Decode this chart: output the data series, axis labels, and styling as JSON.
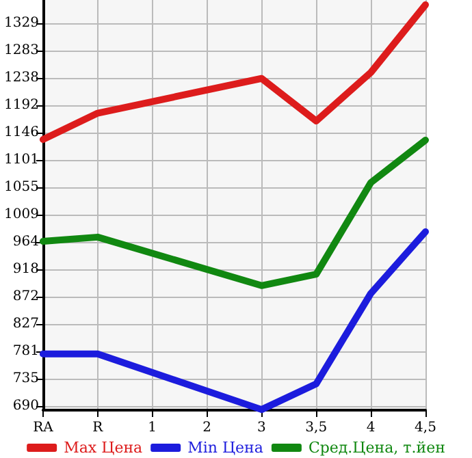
{
  "chart_data": {
    "type": "line",
    "categories": [
      "RA",
      "R",
      "1",
      "2",
      "3",
      "3,5",
      "4",
      "4,5"
    ],
    "series": [
      {
        "name": "Max Цена",
        "color": "#dd1c1c",
        "values": [
          1135,
          1179,
          null,
          null,
          1237,
          1166,
          1247,
          1360
        ]
      },
      {
        "name": "Min Цена",
        "color": "#1c1cdd",
        "values": [
          777,
          777,
          null,
          null,
          684,
          727,
          878,
          981
        ]
      },
      {
        "name": "Сред.Цена, т.йен",
        "color": "#118811",
        "values": [
          965,
          972,
          null,
          null,
          891,
          910,
          1063,
          1134
        ]
      }
    ],
    "ylim": [
      683,
      1368
    ],
    "yticks": [
      690,
      735,
      781,
      827,
      872,
      918,
      964,
      1009,
      1055,
      1101,
      1146,
      1192,
      1238,
      1283,
      1329
    ],
    "grid": true,
    "legend": "bottom",
    "marker": "none",
    "line_style": "solid"
  }
}
